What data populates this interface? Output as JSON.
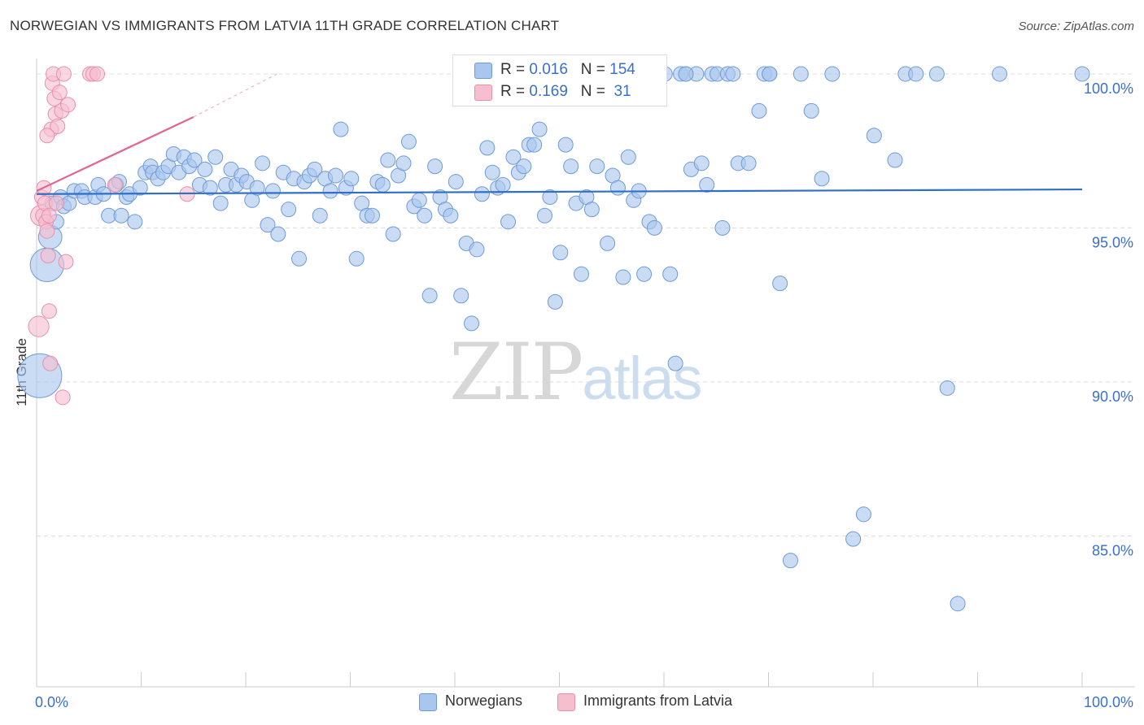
{
  "header": {
    "title": "NORWEGIAN VS IMMIGRANTS FROM LATVIA 11TH GRADE CORRELATION CHART",
    "source": "Source: ZipAtlas.com"
  },
  "watermark": {
    "zip": "ZIP",
    "atlas": "atlas"
  },
  "legend_top": {
    "row1": {
      "r_label": "R =",
      "r_value": "0.016",
      "n_label": "N =",
      "n_value": "154"
    },
    "row2": {
      "r_label": "R =",
      "r_value": "0.169",
      "n_label": "N =",
      "n_value": "31"
    }
  },
  "legend_bottom": {
    "series1": "Norwegians",
    "series2": "Immigrants from Latvia"
  },
  "colors": {
    "blue_fill": "#a9c6ee",
    "blue_stroke": "#6f9ad8",
    "blue_line": "#2f6fc9",
    "pink_fill": "#f6bfd0",
    "pink_stroke": "#e98fab",
    "pink_line": "#e0668e",
    "axis_text": "#3a6fcc"
  },
  "chart_data": {
    "type": "scatter",
    "title": "NORWEGIAN VS IMMIGRANTS FROM LATVIA 11TH GRADE CORRELATION CHART",
    "xlabel": "",
    "ylabel": "11th Grade",
    "xlim": [
      0,
      100
    ],
    "ylim": [
      80.1,
      100.5
    ],
    "x_tick_labels": [
      "0.0%",
      "100.0%"
    ],
    "y_ticks": [
      85,
      90,
      95,
      100
    ],
    "y_tick_labels": [
      "85.0%",
      "90.0%",
      "95.0%",
      "100.0%"
    ],
    "series": [
      {
        "name": "Norwegians",
        "R": 0.016,
        "N": 154,
        "trend": {
          "x": [
            0,
            100
          ],
          "y": [
            96.1,
            96.25
          ]
        },
        "points": [
          [
            0.3,
            90.2,
            3
          ],
          [
            1.0,
            93.8,
            2.3
          ],
          [
            1.3,
            94.7,
            1.6
          ],
          [
            1.5,
            95.8,
            1
          ],
          [
            1.9,
            95.2,
            1
          ],
          [
            2.3,
            96.0,
            1
          ],
          [
            2.6,
            95.7,
            1
          ],
          [
            3.1,
            95.8,
            1
          ],
          [
            3.6,
            96.2,
            1
          ],
          [
            4.3,
            96.2,
            1
          ],
          [
            4.6,
            96.0,
            1
          ],
          [
            5.6,
            96.0,
            1
          ],
          [
            5.9,
            96.4,
            1
          ],
          [
            6.4,
            96.1,
            1
          ],
          [
            6.9,
            95.4,
            1
          ],
          [
            7.6,
            96.4,
            1
          ],
          [
            7.9,
            96.5,
            1
          ],
          [
            8.1,
            95.4,
            1
          ],
          [
            8.6,
            96.0,
            1
          ],
          [
            8.9,
            96.1,
            1
          ],
          [
            9.4,
            95.2,
            1
          ],
          [
            9.9,
            96.3,
            1
          ],
          [
            10.4,
            96.8,
            1
          ],
          [
            10.9,
            97.0,
            1
          ],
          [
            11.1,
            96.8,
            1
          ],
          [
            11.6,
            96.6,
            1
          ],
          [
            12.1,
            96.8,
            1
          ],
          [
            12.6,
            97.0,
            1
          ],
          [
            13.1,
            97.4,
            1
          ],
          [
            13.6,
            96.8,
            1
          ],
          [
            14.1,
            97.3,
            1
          ],
          [
            14.6,
            97.0,
            1
          ],
          [
            15.1,
            97.2,
            1
          ],
          [
            15.6,
            96.4,
            1
          ],
          [
            16.1,
            96.9,
            1
          ],
          [
            16.6,
            96.3,
            1
          ],
          [
            17.1,
            97.3,
            1
          ],
          [
            17.6,
            95.8,
            1
          ],
          [
            18.1,
            96.4,
            1
          ],
          [
            18.6,
            96.9,
            1
          ],
          [
            19.1,
            96.4,
            1
          ],
          [
            19.6,
            96.7,
            1
          ],
          [
            20.1,
            96.5,
            1
          ],
          [
            20.6,
            95.9,
            1
          ],
          [
            21.1,
            96.3,
            1
          ],
          [
            21.6,
            97.1,
            1
          ],
          [
            22.1,
            95.1,
            1
          ],
          [
            22.6,
            96.2,
            1
          ],
          [
            23.1,
            94.8,
            1
          ],
          [
            23.6,
            96.8,
            1
          ],
          [
            24.1,
            95.6,
            1
          ],
          [
            24.6,
            96.6,
            1
          ],
          [
            25.1,
            94.0,
            1
          ],
          [
            25.6,
            96.5,
            1
          ],
          [
            26.1,
            96.7,
            1
          ],
          [
            26.6,
            96.9,
            1
          ],
          [
            27.1,
            95.4,
            1
          ],
          [
            27.6,
            96.6,
            1
          ],
          [
            28.1,
            96.2,
            1
          ],
          [
            28.6,
            96.7,
            1
          ],
          [
            29.1,
            98.2,
            1
          ],
          [
            29.6,
            96.3,
            1
          ],
          [
            30.1,
            96.6,
            1
          ],
          [
            30.6,
            94.0,
            1
          ],
          [
            31.1,
            95.8,
            1
          ],
          [
            31.6,
            95.4,
            1
          ],
          [
            32.1,
            95.4,
            1
          ],
          [
            32.6,
            96.5,
            1
          ],
          [
            33.1,
            96.4,
            1
          ],
          [
            33.6,
            97.2,
            1
          ],
          [
            34.1,
            94.8,
            1
          ],
          [
            34.6,
            96.7,
            1
          ],
          [
            35.1,
            97.1,
            1
          ],
          [
            35.6,
            97.8,
            1
          ],
          [
            36.1,
            95.7,
            1
          ],
          [
            36.6,
            95.9,
            1
          ],
          [
            37.1,
            95.4,
            1
          ],
          [
            37.6,
            92.8,
            1
          ],
          [
            38.1,
            97.0,
            1
          ],
          [
            38.6,
            96.0,
            1
          ],
          [
            39.1,
            95.6,
            1
          ],
          [
            39.6,
            95.4,
            1
          ],
          [
            40.1,
            96.5,
            1
          ],
          [
            40.6,
            92.8,
            1
          ],
          [
            41.1,
            94.5,
            1
          ],
          [
            41.6,
            91.9,
            1
          ],
          [
            42.1,
            94.3,
            1
          ],
          [
            42.6,
            96.1,
            1
          ],
          [
            43.1,
            97.6,
            1
          ],
          [
            43.6,
            96.8,
            1
          ],
          [
            44.1,
            96.3,
            1
          ],
          [
            44.6,
            96.4,
            1
          ],
          [
            45.1,
            95.2,
            1
          ],
          [
            45.6,
            97.3,
            1
          ],
          [
            46.1,
            96.8,
            1
          ],
          [
            46.6,
            97.0,
            1
          ],
          [
            47.1,
            97.7,
            1
          ],
          [
            47.6,
            97.7,
            1
          ],
          [
            48.1,
            98.2,
            1
          ],
          [
            48.6,
            95.4,
            1
          ],
          [
            49.1,
            96.0,
            1
          ],
          [
            49.6,
            92.6,
            1
          ],
          [
            50.1,
            94.2,
            1
          ],
          [
            50.6,
            97.7,
            1
          ],
          [
            51.1,
            97.0,
            1
          ],
          [
            51.6,
            95.8,
            1
          ],
          [
            52.1,
            93.5,
            1
          ],
          [
            52.6,
            96.0,
            1
          ],
          [
            53.1,
            95.6,
            1
          ],
          [
            53.6,
            97.0,
            1
          ],
          [
            54.1,
            100.0,
            1
          ],
          [
            54.6,
            94.5,
            1
          ],
          [
            55.1,
            96.7,
            1
          ],
          [
            55.6,
            96.3,
            1
          ],
          [
            56.1,
            93.4,
            1
          ],
          [
            56.6,
            97.3,
            1
          ],
          [
            57.1,
            95.9,
            1
          ],
          [
            57.6,
            96.2,
            1
          ],
          [
            58.1,
            93.5,
            1
          ],
          [
            58.6,
            95.2,
            1
          ],
          [
            59.1,
            95.0,
            1
          ],
          [
            60.1,
            100.0,
            1
          ],
          [
            60.6,
            93.5,
            1
          ],
          [
            61.1,
            90.6,
            1
          ],
          [
            61.6,
            100.0,
            1
          ],
          [
            62.1,
            100.0,
            1
          ],
          [
            62.6,
            96.9,
            1
          ],
          [
            63.1,
            100.0,
            1
          ],
          [
            63.6,
            97.1,
            1
          ],
          [
            64.1,
            96.4,
            1
          ],
          [
            64.6,
            100.0,
            1
          ],
          [
            65.1,
            100.0,
            1
          ],
          [
            65.6,
            95.0,
            1
          ],
          [
            66.1,
            100.0,
            1
          ],
          [
            66.6,
            100.0,
            1
          ],
          [
            67.1,
            97.1,
            1
          ],
          [
            68.1,
            97.1,
            1
          ],
          [
            69.1,
            98.8,
            1
          ],
          [
            69.6,
            100.0,
            1
          ],
          [
            70.1,
            100.0,
            1
          ],
          [
            71.1,
            93.2,
            1
          ],
          [
            72.1,
            84.2,
            1
          ],
          [
            73.1,
            100.0,
            1
          ],
          [
            74.1,
            98.8,
            1
          ],
          [
            75.1,
            96.6,
            1
          ],
          [
            76.1,
            100.0,
            1
          ],
          [
            78.1,
            84.9,
            1
          ],
          [
            79.1,
            85.7,
            1
          ],
          [
            80.1,
            98.0,
            1
          ],
          [
            82.1,
            97.2,
            1
          ],
          [
            83.1,
            100.0,
            1
          ],
          [
            84.1,
            100.0,
            1
          ],
          [
            86.1,
            100.0,
            1
          ],
          [
            87.1,
            89.8,
            1
          ],
          [
            88.1,
            82.8,
            1
          ],
          [
            92.1,
            100.0,
            1
          ],
          [
            100.0,
            100.0,
            1
          ],
          [
            62.1,
            100.0,
            1
          ],
          [
            70.1,
            100.0,
            1
          ],
          [
            53.6,
            100.0,
            1
          ]
        ]
      },
      {
        "name": "Immigrants from Latvia",
        "R": 0.169,
        "N": 31,
        "trend": {
          "x": [
            0,
            15
          ],
          "y": [
            96.2,
            98.6
          ]
        },
        "trend_dashed": {
          "x": [
            15,
            23
          ],
          "y": [
            98.6,
            100.0
          ]
        },
        "points": [
          [
            0.2,
            91.8,
            1.4
          ],
          [
            0.4,
            95.4,
            1.4
          ],
          [
            0.5,
            96.0,
            1
          ],
          [
            0.6,
            95.4,
            1
          ],
          [
            0.7,
            96.3,
            1
          ],
          [
            0.8,
            95.8,
            1
          ],
          [
            0.9,
            95.2,
            1
          ],
          [
            1.0,
            94.9,
            1
          ],
          [
            1.1,
            94.1,
            1
          ],
          [
            1.2,
            92.3,
            1
          ],
          [
            1.3,
            90.6,
            1
          ],
          [
            1.4,
            98.2,
            1
          ],
          [
            1.5,
            99.7,
            1
          ],
          [
            1.6,
            100.0,
            1
          ],
          [
            1.7,
            99.2,
            1
          ],
          [
            1.8,
            98.7,
            1
          ],
          [
            1.9,
            95.8,
            1
          ],
          [
            2.0,
            98.3,
            1
          ],
          [
            2.2,
            99.4,
            1
          ],
          [
            2.4,
            98.8,
            1
          ],
          [
            2.6,
            100.0,
            1
          ],
          [
            2.8,
            93.9,
            1
          ],
          [
            3.0,
            99.0,
            1
          ],
          [
            1.0,
            98.0,
            1
          ],
          [
            1.2,
            95.4,
            1
          ],
          [
            2.5,
            89.5,
            1
          ],
          [
            5.1,
            100.0,
            1
          ],
          [
            5.4,
            100.0,
            1
          ],
          [
            5.8,
            100.0,
            1
          ],
          [
            7.5,
            96.4,
            1
          ],
          [
            14.4,
            96.1,
            1
          ]
        ]
      }
    ]
  }
}
